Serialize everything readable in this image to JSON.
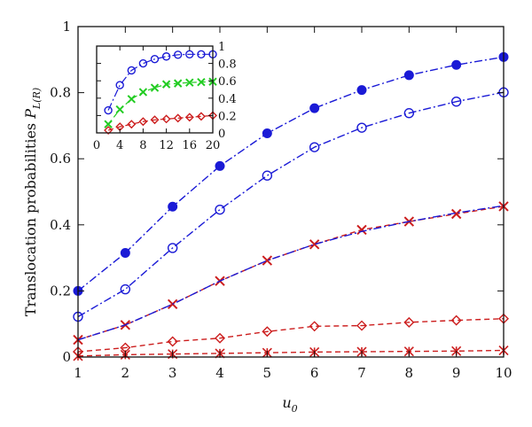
{
  "chart_data": [
    {
      "type": "line",
      "xlabel_main": "u",
      "xlabel_sub": "0",
      "ylabel_main": "Translocation probabilities ",
      "ylabel_italic": "P",
      "ylabel_sub": "L(R)",
      "xlim": [
        1,
        10
      ],
      "ylim": [
        0,
        1
      ],
      "xticks": [
        1,
        2,
        3,
        4,
        5,
        6,
        7,
        8,
        9,
        10
      ],
      "yticks": [
        0,
        0.2,
        0.4,
        0.6,
        0.8,
        1
      ],
      "ytick_labels": [
        "0",
        "0.2",
        "0.4",
        "0.6",
        "0.8",
        "1"
      ],
      "grid": false,
      "x": [
        1,
        2,
        3,
        4,
        5,
        6,
        7,
        8,
        9,
        10
      ],
      "series": [
        {
          "marker": "filled-circle",
          "line": "dash-dot",
          "color": "#1a1ad6",
          "values": [
            0.2,
            0.315,
            0.455,
            0.578,
            0.677,
            0.753,
            0.808,
            0.853,
            0.884,
            0.908
          ]
        },
        {
          "marker": "open-circle",
          "line": "dash-dot",
          "color": "#1a1ad6",
          "values": [
            0.122,
            0.205,
            0.33,
            0.446,
            0.549,
            0.635,
            0.694,
            0.738,
            0.773,
            0.801
          ]
        },
        {
          "marker": "x",
          "line": "dashed",
          "color": "#cc1d1d",
          "values": [
            0.052,
            0.097,
            0.16,
            0.23,
            0.292,
            0.341,
            0.385,
            0.41,
            0.433,
            0.456
          ]
        },
        {
          "marker": "none",
          "line": "dash-dot",
          "color": "#1a1ad6",
          "values": [
            0.052,
            0.097,
            0.16,
            0.23,
            0.292,
            0.341,
            0.38,
            0.41,
            0.436,
            0.458
          ]
        },
        {
          "marker": "open-diamond",
          "line": "dashed",
          "color": "#cc1d1d",
          "values": [
            0.016,
            0.028,
            0.047,
            0.057,
            0.077,
            0.093,
            0.095,
            0.105,
            0.111,
            0.116
          ]
        },
        {
          "marker": "asterisk",
          "line": "dashed",
          "color": "#cc1d1d",
          "values": [
            0.003,
            0.007,
            0.009,
            0.011,
            0.013,
            0.015,
            0.016,
            0.017,
            0.018,
            0.02
          ]
        }
      ]
    },
    {
      "type": "line",
      "position": "inset-top-left",
      "xlim": [
        0,
        20
      ],
      "ylim": [
        0,
        1
      ],
      "xticks": [
        0,
        4,
        8,
        12,
        16,
        20
      ],
      "yticks": [
        0,
        0.2,
        0.4,
        0.6,
        0.8,
        1
      ],
      "ytick_labels": [
        "0",
        "0.2",
        "0.4",
        "0.6",
        "0.8",
        "1"
      ],
      "x": [
        2,
        4,
        6,
        8,
        10,
        12,
        14,
        16,
        18,
        20
      ],
      "series": [
        {
          "marker": "open-circle",
          "line": "dash-dot",
          "color": "#1a1ad6",
          "values": [
            0.26,
            0.55,
            0.72,
            0.8,
            0.85,
            0.88,
            0.9,
            0.905,
            0.905,
            0.905
          ]
        },
        {
          "marker": "x",
          "line": "dashed",
          "color": "#22cc22",
          "values": [
            0.1,
            0.27,
            0.39,
            0.47,
            0.52,
            0.56,
            0.57,
            0.58,
            0.585,
            0.59
          ]
        },
        {
          "marker": "open-diamond",
          "line": "dashed",
          "color": "#cc1d1d",
          "values": [
            0.03,
            0.07,
            0.1,
            0.13,
            0.15,
            0.16,
            0.17,
            0.18,
            0.19,
            0.2
          ]
        }
      ]
    }
  ]
}
